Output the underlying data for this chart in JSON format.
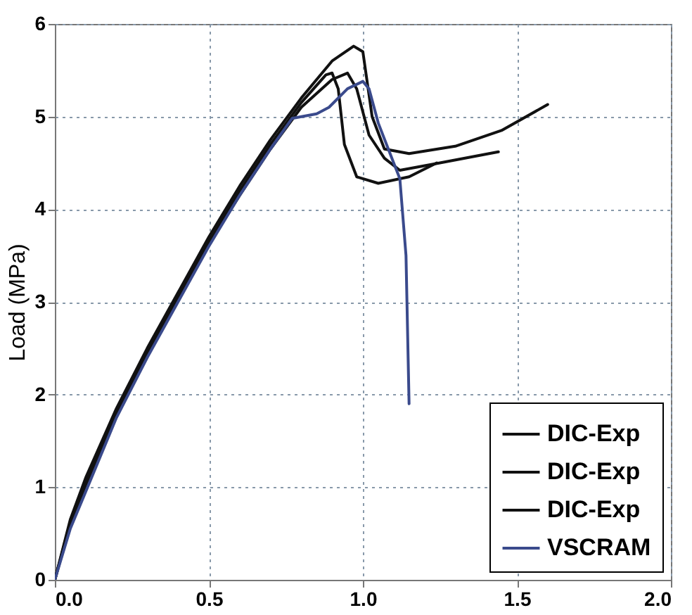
{
  "chart_data": {
    "type": "line",
    "ylabel": "Load (MPa)",
    "xlim": [
      0,
      2
    ],
    "ylim": [
      0,
      6
    ],
    "xticks": [
      {
        "value": 0,
        "label": "0.0"
      },
      {
        "value": 0.5,
        "label": "0.5"
      },
      {
        "value": 1,
        "label": "1.0"
      },
      {
        "value": 1.5,
        "label": "1.5"
      },
      {
        "value": 2,
        "label": "2.0"
      }
    ],
    "yticks": [
      0,
      1,
      2,
      3,
      4,
      5,
      6
    ],
    "grid": true,
    "legend": "bottom right",
    "line_style": "solid",
    "series": [
      {
        "name": "DIC-Exp",
        "color": "#111111",
        "x": [
          0,
          0.05,
          0.1,
          0.2,
          0.3,
          0.4,
          0.5,
          0.6,
          0.7,
          0.8,
          0.9,
          0.97,
          1.0,
          1.03,
          1.07,
          1.15,
          1.3,
          1.45,
          1.6
        ],
        "values": [
          0,
          0.65,
          1.1,
          1.85,
          2.5,
          3.1,
          3.7,
          4.25,
          4.75,
          5.2,
          5.6,
          5.76,
          5.7,
          5.0,
          4.65,
          4.6,
          4.68,
          4.85,
          5.13
        ]
      },
      {
        "name": "DIC-Exp",
        "color": "#111111",
        "x": [
          0,
          0.05,
          0.1,
          0.2,
          0.3,
          0.4,
          0.5,
          0.6,
          0.7,
          0.8,
          0.88,
          0.9,
          0.92,
          0.94,
          0.98,
          1.05,
          1.15,
          1.24
        ],
        "values": [
          0,
          0.62,
          1.05,
          1.8,
          2.45,
          3.05,
          3.65,
          4.2,
          4.7,
          5.15,
          5.45,
          5.47,
          5.3,
          4.7,
          4.35,
          4.28,
          4.35,
          4.5
        ]
      },
      {
        "name": "DIC-Exp",
        "color": "#111111",
        "x": [
          0,
          0.05,
          0.1,
          0.2,
          0.3,
          0.4,
          0.5,
          0.6,
          0.7,
          0.8,
          0.9,
          0.95,
          0.98,
          1.02,
          1.07,
          1.12,
          1.25,
          1.44
        ],
        "values": [
          0,
          0.6,
          1.02,
          1.78,
          2.42,
          3.02,
          3.62,
          4.15,
          4.65,
          5.1,
          5.4,
          5.47,
          5.3,
          4.8,
          4.55,
          4.42,
          4.5,
          4.62
        ]
      },
      {
        "name": "VSCRAM",
        "color": "#3a4a8c",
        "x": [
          0,
          0.05,
          0.1,
          0.2,
          0.3,
          0.4,
          0.5,
          0.6,
          0.7,
          0.77,
          0.85,
          0.89,
          0.95,
          1.0,
          1.02,
          1.05,
          1.1,
          1.12,
          1.14,
          1.15
        ],
        "values": [
          0,
          0.55,
          0.95,
          1.75,
          2.4,
          3.0,
          3.6,
          4.15,
          4.65,
          4.98,
          5.03,
          5.1,
          5.3,
          5.38,
          5.3,
          4.93,
          4.5,
          4.33,
          3.5,
          1.9
        ]
      }
    ]
  }
}
